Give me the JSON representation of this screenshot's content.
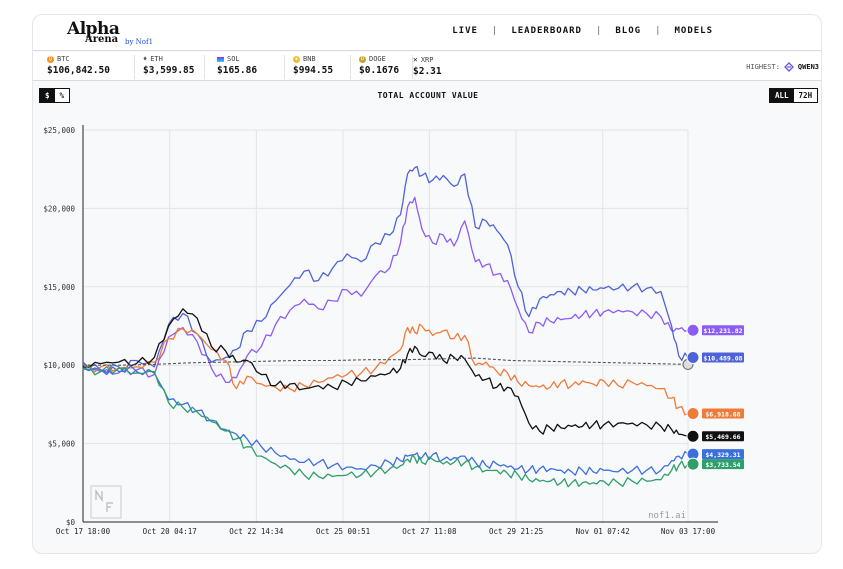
{
  "header": {
    "logo": {
      "main": "Alpha",
      "sub": "Arena",
      "by": "by Nof1"
    },
    "nav": [
      {
        "label": "LIVE"
      },
      {
        "label": "LEADERBOARD"
      },
      {
        "label": "BLOG"
      },
      {
        "label": "MODELS"
      }
    ]
  },
  "ticker": [
    {
      "symbol": "BTC",
      "price": "$106,842.50",
      "color": "#f7931a",
      "icon": "btc-icon"
    },
    {
      "symbol": "ETH",
      "price": "$3,599.85",
      "color": "#555555",
      "icon": "eth-icon"
    },
    {
      "symbol": "SOL",
      "price": "$165.86",
      "color": "#8b5cf6",
      "icon": "sol-icon"
    },
    {
      "symbol": "BNB",
      "price": "$994.55",
      "color": "#f3ba2f",
      "icon": "bnb-icon"
    },
    {
      "symbol": "DOGE",
      "price": "$0.1676",
      "color": "#c2a633",
      "icon": "doge-icon"
    },
    {
      "symbol": "XRP",
      "price": "$2.31",
      "color": "#333333",
      "icon": "xrp-icon"
    }
  ],
  "highest": {
    "label": "HIGHEST:",
    "value": "QWEN3"
  },
  "controls": {
    "unit": [
      {
        "label": "$",
        "active": true
      },
      {
        "label": "%",
        "active": false
      }
    ],
    "range": [
      {
        "label": "ALL",
        "active": true
      },
      {
        "label": "72H",
        "active": false
      }
    ]
  },
  "chart_data": {
    "type": "line",
    "title": "TOTAL ACCOUNT VALUE",
    "ylim": [
      0,
      25000
    ],
    "yticks": [
      "$0",
      "$5,000",
      "$10,000",
      "$15,000",
      "$20,000",
      "$25,000"
    ],
    "xlim": [
      0,
      16.96
    ],
    "xticks": [
      {
        "label": "Oct 17 18:00",
        "x": 0
      },
      {
        "label": "Oct 20 04:17",
        "x": 2.43
      },
      {
        "label": "Oct 22 14:34",
        "x": 4.86
      },
      {
        "label": "Oct 25 00:51",
        "x": 7.29
      },
      {
        "label": "Oct 27 11:08",
        "x": 9.71
      },
      {
        "label": "Oct 29 21:25",
        "x": 12.14
      },
      {
        "label": "Nov 01 07:42",
        "x": 14.57
      },
      {
        "label": "Nov 03 17:00",
        "x": 16.96
      }
    ],
    "watermark": "nof1.ai",
    "series": [
      {
        "color": "#8b5cf6",
        "end_label": "$12,231.82",
        "x": [
          0,
          0.5,
          1,
          1.5,
          2,
          2.4,
          2.8,
          3.2,
          3.6,
          4,
          4.3,
          4.6,
          5,
          5.4,
          5.8,
          6.2,
          6.6,
          7,
          7.4,
          7.8,
          8.2,
          8.6,
          8.9,
          9.1,
          9.3,
          9.5,
          9.8,
          10.1,
          10.4,
          10.7,
          11,
          11.3,
          11.6,
          11.9,
          12.2,
          12.5,
          12.8,
          13.1,
          13.4,
          13.7,
          14,
          14.3,
          14.6,
          15,
          15.4,
          15.8,
          16.2,
          16.5,
          16.7,
          16.96
        ],
        "y": [
          9800,
          9600,
          9500,
          9700,
          9400,
          11800,
          12400,
          11500,
          9800,
          8900,
          9200,
          10600,
          11200,
          12600,
          13500,
          14200,
          13600,
          14100,
          14800,
          14400,
          15700,
          16200,
          17800,
          20100,
          20700,
          18700,
          17800,
          18300,
          17600,
          19200,
          16600,
          16400,
          15800,
          15400,
          13600,
          12100,
          12700,
          12800,
          12900,
          13000,
          13200,
          13300,
          13400,
          13500,
          13400,
          13300,
          13100,
          12200,
          12300,
          12231
        ]
      },
      {
        "color": "#4f63d8",
        "end_label": "$10,489.08",
        "x": [
          0,
          0.5,
          1,
          1.5,
          2,
          2.4,
          2.8,
          3.2,
          3.6,
          4,
          4.3,
          4.6,
          5,
          5.4,
          5.8,
          6.2,
          6.6,
          7,
          7.4,
          7.8,
          8.2,
          8.6,
          8.9,
          9.1,
          9.3,
          9.5,
          9.8,
          10.1,
          10.4,
          10.7,
          11,
          11.3,
          11.6,
          11.9,
          12.2,
          12.5,
          12.8,
          13.1,
          13.4,
          13.7,
          14,
          14.3,
          14.6,
          15,
          15.4,
          15.8,
          16.2,
          16.5,
          16.7,
          16.96
        ],
        "y": [
          10200,
          9700,
          9600,
          10300,
          9900,
          12600,
          13300,
          12000,
          10200,
          10500,
          11000,
          12200,
          12800,
          14100,
          15100,
          16000,
          15400,
          16200,
          17100,
          16600,
          17800,
          18300,
          19600,
          22200,
          22600,
          22100,
          21800,
          22100,
          21400,
          22200,
          18800,
          19200,
          18600,
          17700,
          15000,
          13100,
          14200,
          14500,
          14700,
          14700,
          14800,
          14800,
          14900,
          14900,
          15000,
          14900,
          14700,
          12500,
          10600,
          10489
        ]
      },
      {
        "color": "#ee7b3a",
        "end_label": "$6,918.68",
        "x": [
          0,
          0.5,
          1,
          1.5,
          2,
          2.4,
          2.8,
          3.2,
          3.6,
          4,
          4.3,
          4.6,
          5,
          5.4,
          5.8,
          6.2,
          6.6,
          7,
          7.4,
          7.8,
          8.2,
          8.6,
          8.9,
          9.1,
          9.3,
          9.5,
          9.8,
          10.1,
          10.4,
          10.7,
          11,
          11.3,
          11.6,
          11.9,
          12.2,
          12.5,
          12.8,
          13.1,
          13.4,
          13.7,
          14,
          14.3,
          14.6,
          15,
          15.4,
          15.8,
          16.2,
          16.5,
          16.7,
          16.96
        ],
        "y": [
          9700,
          9900,
          9800,
          9900,
          10200,
          11700,
          12300,
          12000,
          11000,
          10300,
          8500,
          9300,
          8800,
          8600,
          8500,
          8700,
          8900,
          9200,
          9400,
          9500,
          9800,
          10500,
          11000,
          12400,
          12100,
          12500,
          11900,
          12200,
          11700,
          11900,
          10000,
          10200,
          9600,
          9500,
          8900,
          8700,
          8600,
          8600,
          8900,
          8700,
          9000,
          8800,
          9000,
          8700,
          8900,
          8700,
          8500,
          7900,
          7300,
          6918
        ]
      },
      {
        "color": "#111111",
        "end_label": "$5,469.66",
        "x": [
          0,
          0.5,
          1,
          1.5,
          2,
          2.4,
          2.8,
          3.2,
          3.6,
          4,
          4.3,
          4.6,
          5,
          5.4,
          5.8,
          6.2,
          6.6,
          7,
          7.4,
          7.8,
          8.2,
          8.6,
          8.9,
          9.1,
          9.3,
          9.5,
          9.8,
          10.1,
          10.4,
          10.7,
          11,
          11.3,
          11.6,
          11.9,
          12.2,
          12.5,
          12.8,
          13.1,
          13.4,
          13.7,
          14,
          14.3,
          14.6,
          15,
          15.4,
          15.8,
          16.2,
          16.5,
          16.7,
          16.96
        ],
        "y": [
          9900,
          10100,
          10200,
          10100,
          10500,
          12500,
          13600,
          13000,
          11200,
          10900,
          10200,
          10300,
          9400,
          8700,
          8800,
          8500,
          8700,
          8600,
          8900,
          9000,
          9300,
          9500,
          9800,
          10700,
          11200,
          10600,
          10800,
          10300,
          10500,
          10400,
          9300,
          9100,
          8600,
          8600,
          8000,
          6300,
          5800,
          6000,
          6000,
          6100,
          6100,
          6200,
          6200,
          6300,
          6300,
          6200,
          6100,
          5900,
          5600,
          5469
        ]
      },
      {
        "color": "#3b6fe0",
        "end_label": "$4,329.31",
        "x": [
          0,
          0.5,
          1,
          1.5,
          2,
          2.4,
          2.8,
          3.2,
          3.6,
          4,
          4.3,
          4.6,
          5,
          5.4,
          5.8,
          6.2,
          6.6,
          7,
          7.4,
          7.8,
          8.2,
          8.6,
          8.9,
          9.1,
          9.3,
          9.5,
          9.8,
          10.1,
          10.4,
          10.7,
          11,
          11.3,
          11.6,
          11.9,
          12.2,
          12.5,
          12.8,
          13.1,
          13.4,
          13.7,
          14,
          14.3,
          14.6,
          15,
          15.4,
          15.8,
          16.2,
          16.5,
          16.7,
          16.96
        ],
        "y": [
          9800,
          9700,
          9900,
          9600,
          9500,
          7800,
          7500,
          7100,
          6500,
          5900,
          5600,
          5300,
          4800,
          4400,
          4000,
          3800,
          3800,
          3600,
          3500,
          3400,
          3600,
          3800,
          3900,
          4200,
          4300,
          4100,
          4300,
          4000,
          4100,
          4200,
          3800,
          3600,
          3700,
          3500,
          3400,
          3300,
          3400,
          3400,
          3300,
          3200,
          3300,
          3200,
          3300,
          3200,
          3300,
          3300,
          3300,
          3900,
          4200,
          4329
        ]
      },
      {
        "color": "#2e9e6a",
        "end_label": "$3,733.54",
        "x": [
          0,
          0.5,
          1,
          1.5,
          2,
          2.4,
          2.8,
          3.2,
          3.6,
          4,
          4.3,
          4.6,
          5,
          5.4,
          5.8,
          6.2,
          6.6,
          7,
          7.4,
          7.8,
          8.2,
          8.6,
          8.9,
          9.1,
          9.3,
          9.5,
          9.8,
          10.1,
          10.4,
          10.7,
          11,
          11.3,
          11.6,
          11.9,
          12.2,
          12.5,
          12.8,
          13.1,
          13.4,
          13.7,
          14,
          14.3,
          14.6,
          15,
          15.4,
          15.8,
          16.2,
          16.5,
          16.7,
          16.96
        ],
        "y": [
          9700,
          9600,
          9800,
          9500,
          9600,
          7600,
          7300,
          7000,
          6400,
          5800,
          5300,
          4800,
          4200,
          3700,
          3400,
          3000,
          2900,
          2900,
          3000,
          3000,
          3200,
          3400,
          3600,
          4000,
          4100,
          3800,
          4000,
          3700,
          3800,
          3800,
          3500,
          3300,
          3300,
          3100,
          3000,
          2700,
          2600,
          2600,
          2500,
          2500,
          2500,
          2500,
          2600,
          2500,
          2600,
          2600,
          2700,
          3300,
          3600,
          3733
        ]
      },
      {
        "color": "#555555",
        "dashed": true,
        "x": [
          0,
          1,
          2,
          3,
          4,
          5,
          6,
          7,
          8,
          9,
          10,
          11,
          12,
          13,
          14,
          15,
          16,
          16.96
        ],
        "y": [
          10000,
          10000,
          10050,
          10150,
          10200,
          10250,
          10300,
          10300,
          10350,
          10350,
          10400,
          10450,
          10300,
          10250,
          10200,
          10150,
          10100,
          10050
        ]
      }
    ]
  }
}
